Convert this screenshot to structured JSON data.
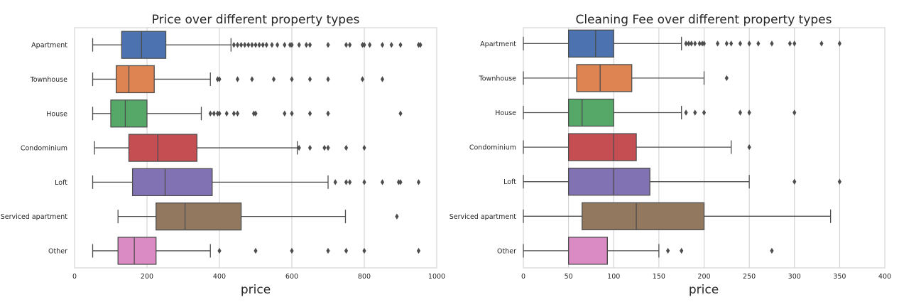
{
  "chart_data": [
    {
      "type": "box",
      "title": "Price over different property types",
      "xlabel": "price",
      "ylabel": "",
      "xlim": [
        0,
        1000
      ],
      "xticks": [
        0,
        200,
        400,
        600,
        800,
        1000
      ],
      "grid": "vertical",
      "orientation": "horizontal",
      "categories": [
        "Apartment",
        "Townhouse",
        "House",
        "Condominium",
        "Loft",
        "Serviced apartment",
        "Other"
      ],
      "colors": [
        "#4c72b0",
        "#dd8452",
        "#55a868",
        "#c44e52",
        "#8172b3",
        "#937860",
        "#da8bc3"
      ],
      "series": [
        {
          "category": "Apartment",
          "whisker_low": 50,
          "q1": 130,
          "median": 185,
          "q3": 252,
          "whisker_high": 432,
          "outliers": [
            440,
            450,
            460,
            470,
            480,
            490,
            500,
            510,
            520,
            530,
            545,
            560,
            580,
            595,
            600,
            620,
            640,
            650,
            700,
            750,
            760,
            795,
            800,
            815,
            850,
            875,
            900,
            950,
            955
          ]
        },
        {
          "category": "Townhouse",
          "whisker_low": 50,
          "q1": 115,
          "median": 150,
          "q3": 220,
          "whisker_high": 375,
          "outliers": [
            395,
            400,
            450,
            490,
            550,
            600,
            650,
            700,
            795,
            850
          ]
        },
        {
          "category": "House",
          "whisker_low": 50,
          "q1": 100,
          "median": 140,
          "q3": 200,
          "whisker_high": 350,
          "outliers": [
            375,
            385,
            395,
            400,
            420,
            440,
            450,
            495,
            500,
            580,
            600,
            650,
            700,
            900
          ]
        },
        {
          "category": "Condominium",
          "whisker_low": 55,
          "q1": 150,
          "median": 230,
          "q3": 338,
          "whisker_high": 615,
          "outliers": [
            620,
            650,
            690,
            700,
            750,
            800
          ]
        },
        {
          "category": "Loft",
          "whisker_low": 50,
          "q1": 160,
          "median": 250,
          "q3": 380,
          "whisker_high": 700,
          "outliers": [
            720,
            750,
            760,
            800,
            850,
            895,
            900,
            950
          ]
        },
        {
          "category": "Serviced apartment",
          "whisker_low": 120,
          "q1": 225,
          "median": 305,
          "q3": 460,
          "whisker_high": 748,
          "outliers": [
            890
          ]
        },
        {
          "category": "Other",
          "whisker_low": 50,
          "q1": 120,
          "median": 165,
          "q3": 225,
          "whisker_high": 375,
          "outliers": [
            400,
            500,
            600,
            700,
            750,
            800,
            950
          ]
        }
      ]
    },
    {
      "type": "box",
      "title": "Cleaning Fee over different property types",
      "xlabel": "price",
      "ylabel": "",
      "xlim": [
        0,
        400
      ],
      "xticks": [
        0,
        50,
        100,
        150,
        200,
        250,
        300,
        350,
        400
      ],
      "grid": "vertical",
      "orientation": "horizontal",
      "categories": [
        "Apartment",
        "Townhouse",
        "House",
        "Condominium",
        "Loft",
        "Serviced apartment",
        "Other"
      ],
      "colors": [
        "#4c72b0",
        "#dd8452",
        "#55a868",
        "#c44e52",
        "#8172b3",
        "#937860",
        "#da8bc3"
      ],
      "series": [
        {
          "category": "Apartment",
          "whisker_low": 0,
          "q1": 50,
          "median": 80,
          "q3": 100,
          "whisker_high": 175,
          "outliers": [
            180,
            183,
            186,
            190,
            195,
            198,
            200,
            215,
            225,
            230,
            240,
            250,
            260,
            275,
            295,
            300,
            330,
            350
          ]
        },
        {
          "category": "Townhouse",
          "whisker_low": 0,
          "q1": 59,
          "median": 85,
          "q3": 120,
          "whisker_high": 200,
          "outliers": [
            225
          ]
        },
        {
          "category": "House",
          "whisker_low": 0,
          "q1": 50,
          "median": 65,
          "q3": 100,
          "whisker_high": 175,
          "outliers": [
            180,
            190,
            200,
            240,
            250,
            300
          ]
        },
        {
          "category": "Condominium",
          "whisker_low": 0,
          "q1": 50,
          "median": 100,
          "q3": 125,
          "whisker_high": 230,
          "outliers": [
            250
          ]
        },
        {
          "category": "Loft",
          "whisker_low": 0,
          "q1": 50,
          "median": 100,
          "q3": 140,
          "whisker_high": 250,
          "outliers": [
            300,
            350
          ]
        },
        {
          "category": "Serviced apartment",
          "whisker_low": 0,
          "q1": 65,
          "median": 125,
          "q3": 200,
          "whisker_high": 340,
          "outliers": []
        },
        {
          "category": "Other",
          "whisker_low": 0,
          "q1": 50,
          "median": 93,
          "q3": 93,
          "whisker_high": 150,
          "outliers": [
            160,
            175,
            275
          ]
        }
      ]
    }
  ]
}
